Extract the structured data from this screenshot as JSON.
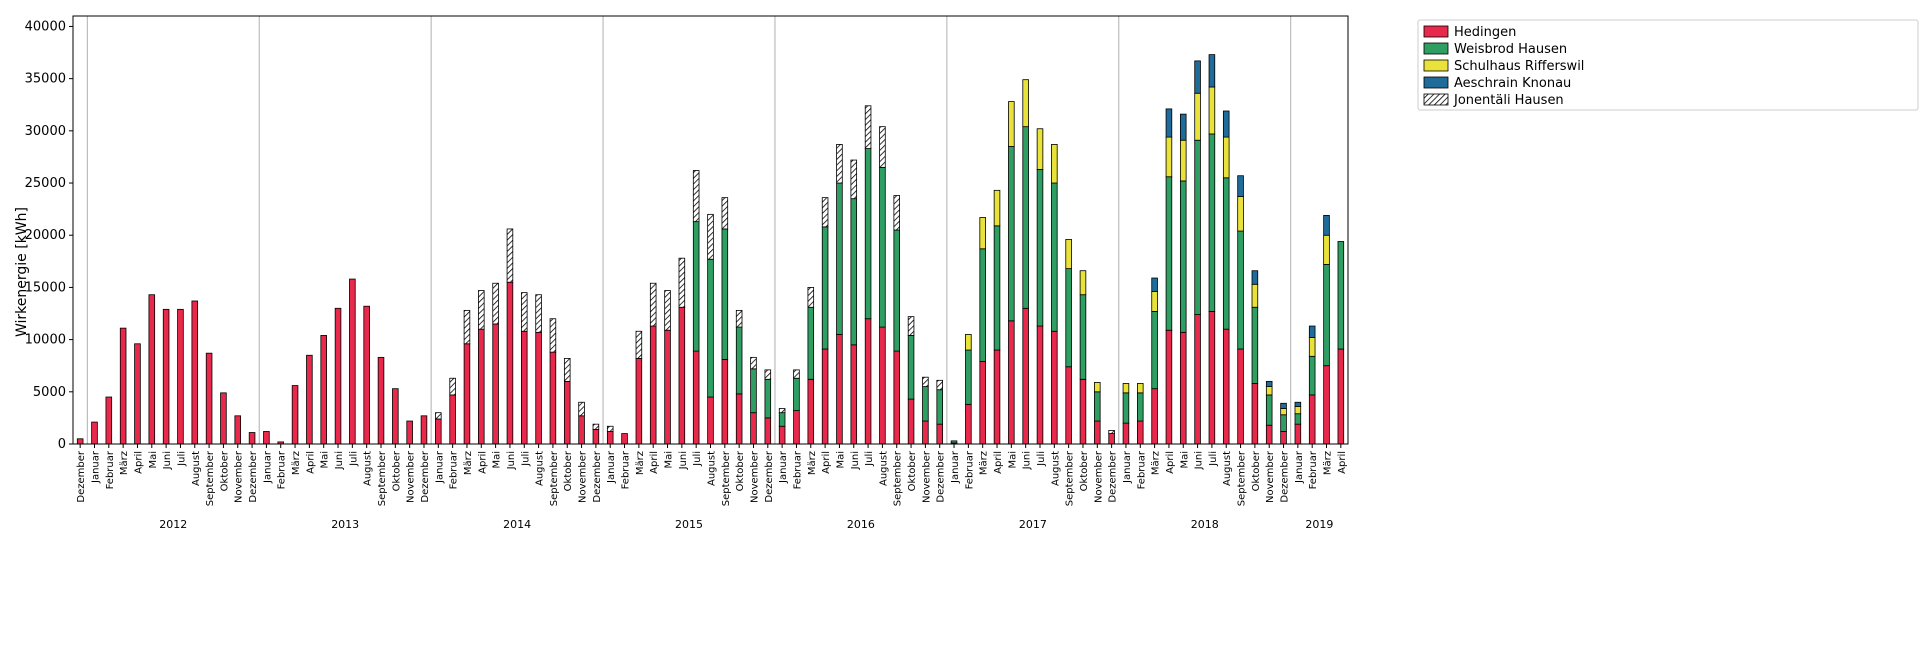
{
  "chart_data": {
    "type": "bar",
    "stacked": true,
    "ylabel": "Wirkenergie [kWh]",
    "xlabel": "",
    "ylim": [
      0,
      41000
    ],
    "yticks": [
      0,
      5000,
      10000,
      15000,
      20000,
      25000,
      30000,
      35000,
      40000
    ],
    "grid": "vertical lines at year boundaries",
    "legend_position": "top-right outside",
    "years": [
      "2012",
      "2013",
      "2014",
      "2015",
      "2016",
      "2017",
      "2018",
      "2019"
    ],
    "categories": [
      "Dezember",
      "Januar",
      "Februar",
      "März",
      "April",
      "Mai",
      "Juni",
      "Juli",
      "August",
      "September",
      "Oktober",
      "November",
      "Dezember",
      "Januar",
      "Februar",
      "März",
      "April",
      "Mai",
      "Juni",
      "Juli",
      "August",
      "September",
      "Oktober",
      "November",
      "Dezember",
      "Januar",
      "Februar",
      "März",
      "April",
      "Mai",
      "Juni",
      "Juli",
      "August",
      "September",
      "Oktober",
      "November",
      "Dezember",
      "Januar",
      "Februar",
      "März",
      "April",
      "Mai",
      "Juni",
      "Juli",
      "August",
      "September",
      "Oktober",
      "November",
      "Dezember",
      "Januar",
      "Februar",
      "März",
      "April",
      "Mai",
      "Juni",
      "Juli",
      "August",
      "September",
      "Oktober",
      "November",
      "Dezember",
      "Januar",
      "Februar",
      "März",
      "April",
      "Mai",
      "Juni",
      "Juli",
      "August",
      "September",
      "Oktober",
      "November",
      "Dezember",
      "Januar",
      "Februar",
      "März",
      "April",
      "Mai",
      "Juni",
      "Juli",
      "August",
      "September",
      "Oktober",
      "November",
      "Dezember",
      "Januar",
      "Februar",
      "März",
      "April"
    ],
    "series": [
      {
        "name": "Hedingen",
        "color": "#e8294b",
        "hatch": false,
        "values": [
          500,
          2100,
          4500,
          11100,
          9600,
          14300,
          12900,
          12900,
          13700,
          8700,
          4900,
          2700,
          1100,
          1200,
          200,
          5600,
          8500,
          10400,
          13000,
          15800,
          13200,
          8300,
          5300,
          2200,
          2700,
          2400,
          4700,
          9600,
          11000,
          11500,
          15500,
          10800,
          10700,
          8800,
          6000,
          2700,
          1400,
          1200,
          1000,
          8200,
          11300,
          10900,
          13100,
          8900,
          4500,
          8100,
          4800,
          3000,
          2500,
          1700,
          3200,
          6200,
          9100,
          10500,
          9500,
          12000,
          11200,
          8900,
          4300,
          2200,
          1900,
          100,
          3800,
          7900,
          9000,
          11800,
          13000,
          11300,
          10800,
          7400,
          6200,
          2200,
          1000,
          2000,
          2200,
          5300,
          10900,
          10700,
          12400,
          12700,
          11000,
          9100,
          5800,
          1800,
          1200,
          1900,
          4700,
          7500,
          9100
        ]
      },
      {
        "name": "Weisbrod Hausen",
        "color": "#2e9e63",
        "hatch": false,
        "values": [
          0,
          0,
          0,
          0,
          0,
          0,
          0,
          0,
          0,
          0,
          0,
          0,
          0,
          0,
          0,
          0,
          0,
          0,
          0,
          0,
          0,
          0,
          0,
          0,
          0,
          0,
          0,
          0,
          0,
          0,
          0,
          0,
          0,
          0,
          0,
          0,
          0,
          0,
          0,
          0,
          0,
          0,
          0,
          12400,
          13200,
          12500,
          6400,
          4200,
          3700,
          1300,
          3100,
          6900,
          11700,
          14500,
          14000,
          16300,
          15300,
          11600,
          6100,
          3300,
          3300,
          200,
          5200,
          10800,
          11900,
          16700,
          17400,
          15000,
          14200,
          9400,
          8100,
          2800,
          0,
          2900,
          2700,
          7400,
          14700,
          14500,
          16700,
          17000,
          14500,
          11300,
          7300,
          2900,
          1600,
          1000,
          3700,
          9700,
          10300
        ]
      },
      {
        "name": "Schulhaus Rifferswil",
        "color": "#e9e23a",
        "hatch": false,
        "values": [
          0,
          0,
          0,
          0,
          0,
          0,
          0,
          0,
          0,
          0,
          0,
          0,
          0,
          0,
          0,
          0,
          0,
          0,
          0,
          0,
          0,
          0,
          0,
          0,
          0,
          0,
          0,
          0,
          0,
          0,
          0,
          0,
          0,
          0,
          0,
          0,
          0,
          0,
          0,
          0,
          0,
          0,
          0,
          0,
          0,
          0,
          0,
          0,
          0,
          0,
          0,
          0,
          0,
          0,
          0,
          0,
          0,
          0,
          0,
          0,
          0,
          0,
          1500,
          3000,
          3400,
          4300,
          4500,
          3900,
          3700,
          2800,
          2300,
          900,
          0,
          900,
          900,
          1900,
          3800,
          3900,
          4500,
          4500,
          3900,
          3300,
          2200,
          800,
          600,
          700,
          1800,
          2800,
          0
        ]
      },
      {
        "name": "Aeschrain Knonau",
        "color": "#1f6b99",
        "hatch": false,
        "values": [
          0,
          0,
          0,
          0,
          0,
          0,
          0,
          0,
          0,
          0,
          0,
          0,
          0,
          0,
          0,
          0,
          0,
          0,
          0,
          0,
          0,
          0,
          0,
          0,
          0,
          0,
          0,
          0,
          0,
          0,
          0,
          0,
          0,
          0,
          0,
          0,
          0,
          0,
          0,
          0,
          0,
          0,
          0,
          0,
          0,
          0,
          0,
          0,
          0,
          0,
          0,
          0,
          0,
          0,
          0,
          0,
          0,
          0,
          0,
          0,
          0,
          0,
          0,
          0,
          0,
          0,
          0,
          0,
          0,
          0,
          0,
          0,
          0,
          0,
          0,
          1300,
          2700,
          2500,
          3100,
          3100,
          2500,
          2000,
          1300,
          500,
          500,
          400,
          1100,
          1900,
          0
        ]
      },
      {
        "name": "Jonentäli Hausen",
        "color": "#ffffff",
        "hatch": true,
        "values": [
          0,
          0,
          0,
          0,
          0,
          0,
          0,
          0,
          0,
          0,
          0,
          0,
          0,
          0,
          0,
          0,
          0,
          0,
          0,
          0,
          0,
          0,
          0,
          0,
          0,
          600,
          1600,
          3200,
          3700,
          3900,
          5100,
          3700,
          3600,
          3200,
          2200,
          1300,
          500,
          500,
          0,
          2600,
          4100,
          3800,
          4700,
          4900,
          4300,
          3000,
          1600,
          1100,
          900,
          400,
          800,
          1900,
          2800,
          3700,
          3700,
          4100,
          3900,
          3300,
          1800,
          900,
          900,
          0,
          0,
          0,
          0,
          0,
          0,
          0,
          0,
          0,
          0,
          0,
          300,
          0,
          0,
          0,
          0,
          0,
          0,
          0,
          0,
          0,
          0,
          0,
          0,
          0,
          0,
          0,
          0
        ]
      }
    ]
  }
}
